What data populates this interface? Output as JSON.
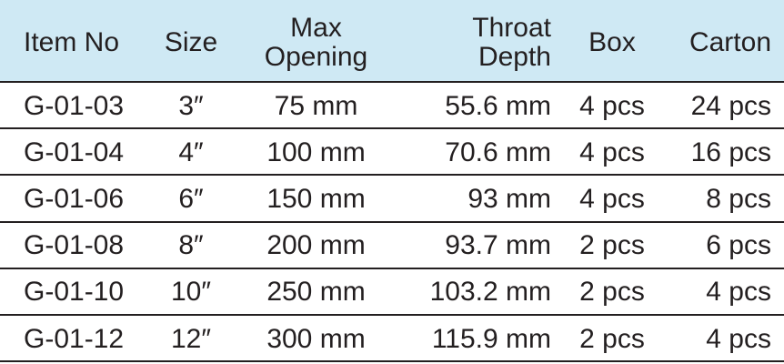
{
  "table": {
    "header": [
      [
        "Item No"
      ],
      [
        "Size"
      ],
      [
        "Max",
        "Opening"
      ],
      [
        "Throat",
        "Depth"
      ],
      [
        "Box"
      ],
      [
        "Carton"
      ]
    ],
    "rows": [
      [
        "G-01-03",
        "3″",
        "75 mm",
        "55.6 mm",
        "4 pcs",
        "24 pcs"
      ],
      [
        "G-01-04",
        "4″",
        "100 mm",
        "70.6 mm",
        "4 pcs",
        "16 pcs"
      ],
      [
        "G-01-06",
        "6″",
        "150 mm",
        "93 mm",
        "4 pcs",
        "8 pcs"
      ],
      [
        "G-01-08",
        "8″",
        "200 mm",
        "93.7 mm",
        "2 pcs",
        "6 pcs"
      ],
      [
        "G-01-10",
        "10″",
        "250 mm",
        "103.2 mm",
        "2 pcs",
        "4 pcs"
      ],
      [
        "G-01-12",
        "12″",
        "300 mm",
        "115.9 mm",
        "2 pcs",
        "4 pcs"
      ]
    ]
  }
}
